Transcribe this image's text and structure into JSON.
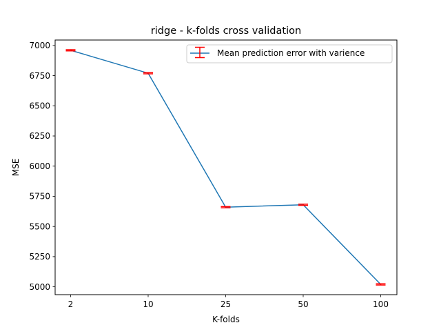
{
  "chart_data": {
    "type": "line",
    "title": "ridge - k-folds cross validation",
    "xlabel": "K-folds",
    "ylabel": "MSE",
    "categories": [
      "2",
      "10",
      "25",
      "50",
      "100"
    ],
    "series": [
      {
        "name": "Mean prediction error with varience",
        "values": [
          6960,
          6770,
          5660,
          5680,
          5020
        ],
        "errors": [
          5,
          5,
          5,
          5,
          5
        ],
        "line_color": "#1f77b4",
        "error_color": "#ff0000"
      }
    ],
    "ylim": [
      4935,
      7045
    ],
    "yticks": [
      5000,
      5250,
      5500,
      5750,
      6000,
      6250,
      6500,
      6750,
      7000
    ],
    "grid": false,
    "legend_position": "top-right"
  }
}
